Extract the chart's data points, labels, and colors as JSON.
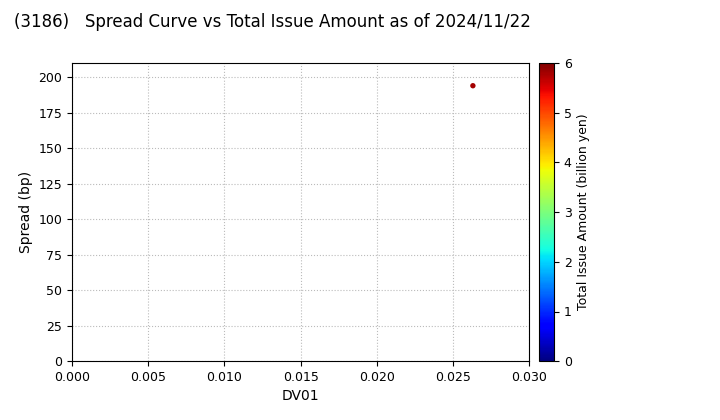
{
  "title": "(3186)   Spread Curve vs Total Issue Amount as of 2024/11/22",
  "xlabel": "DV01",
  "ylabel": "Spread (bp)",
  "colorbar_label": "Total Issue Amount (billion yen)",
  "xlim": [
    0.0,
    0.03
  ],
  "ylim": [
    0,
    210
  ],
  "xticks": [
    0.0,
    0.005,
    0.01,
    0.015,
    0.02,
    0.025,
    0.03
  ],
  "yticks": [
    0,
    25,
    50,
    75,
    100,
    125,
    150,
    175,
    200
  ],
  "colorbar_min": 0,
  "colorbar_max": 6,
  "scatter_x": [
    0.0263
  ],
  "scatter_y": [
    194
  ],
  "scatter_color": [
    5.8
  ],
  "scatter_size": 15,
  "background_color": "#ffffff",
  "grid_color": "#bbbbbb",
  "title_fontsize": 12,
  "axis_fontsize": 10,
  "tick_fontsize": 9,
  "colorbar_fontsize": 9
}
